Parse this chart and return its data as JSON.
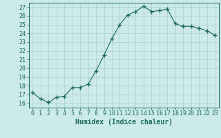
{
  "x": [
    0,
    1,
    2,
    3,
    4,
    5,
    6,
    7,
    8,
    9,
    10,
    11,
    12,
    13,
    14,
    15,
    16,
    17,
    18,
    19,
    20,
    21,
    22,
    23
  ],
  "y": [
    17.2,
    16.5,
    16.1,
    16.7,
    16.8,
    17.8,
    17.8,
    18.2,
    19.7,
    21.5,
    23.4,
    25.0,
    26.1,
    26.5,
    27.1,
    26.5,
    26.6,
    26.8,
    25.1,
    24.8,
    24.8,
    24.6,
    24.3,
    23.8
  ],
  "line_color": "#1a6b5a",
  "marker": "+",
  "marker_size": 4,
  "bg_color": "#cceae7",
  "grid_color": "#b0d4d0",
  "xlabel": "Humidex (Indice chaleur)",
  "ylabel": "",
  "ylim": [
    15.5,
    27.5
  ],
  "yticks": [
    16,
    17,
    18,
    19,
    20,
    21,
    22,
    23,
    24,
    25,
    26,
    27
  ],
  "xlim": [
    -0.5,
    23.5
  ],
  "xticks": [
    0,
    1,
    2,
    3,
    4,
    5,
    6,
    7,
    8,
    9,
    10,
    11,
    12,
    13,
    14,
    15,
    16,
    17,
    18,
    19,
    20,
    21,
    22,
    23
  ],
  "xtick_labels": [
    "0",
    "1",
    "2",
    "3",
    "4",
    "5",
    "6",
    "7",
    "8",
    "9",
    "10",
    "11",
    "12",
    "13",
    "14",
    "15",
    "16",
    "17",
    "18",
    "19",
    "20",
    "21",
    "22",
    "23"
  ],
  "tick_color": "#1a6b5a",
  "xlabel_fontsize": 7,
  "tick_fontsize": 6
}
